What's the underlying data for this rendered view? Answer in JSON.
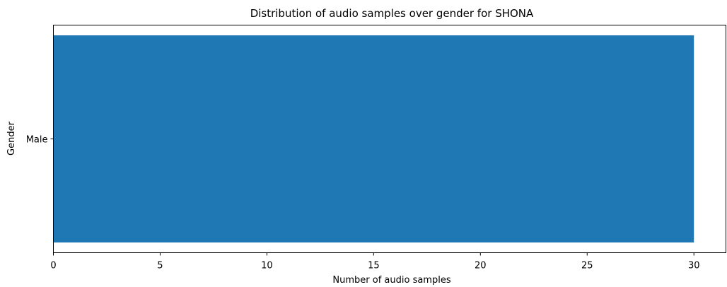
{
  "chart_data": {
    "type": "bar",
    "orientation": "horizontal",
    "title": "Distribution of audio samples over gender for SHONA",
    "xlabel": "Number of audio samples",
    "ylabel": "Gender",
    "categories": [
      "Male"
    ],
    "values": [
      30
    ],
    "xlim": [
      0,
      31.5
    ],
    "xticks": [
      "0",
      "5",
      "10",
      "15",
      "20",
      "25",
      "30"
    ],
    "grid": false,
    "bar_color": "#1f77b4"
  }
}
